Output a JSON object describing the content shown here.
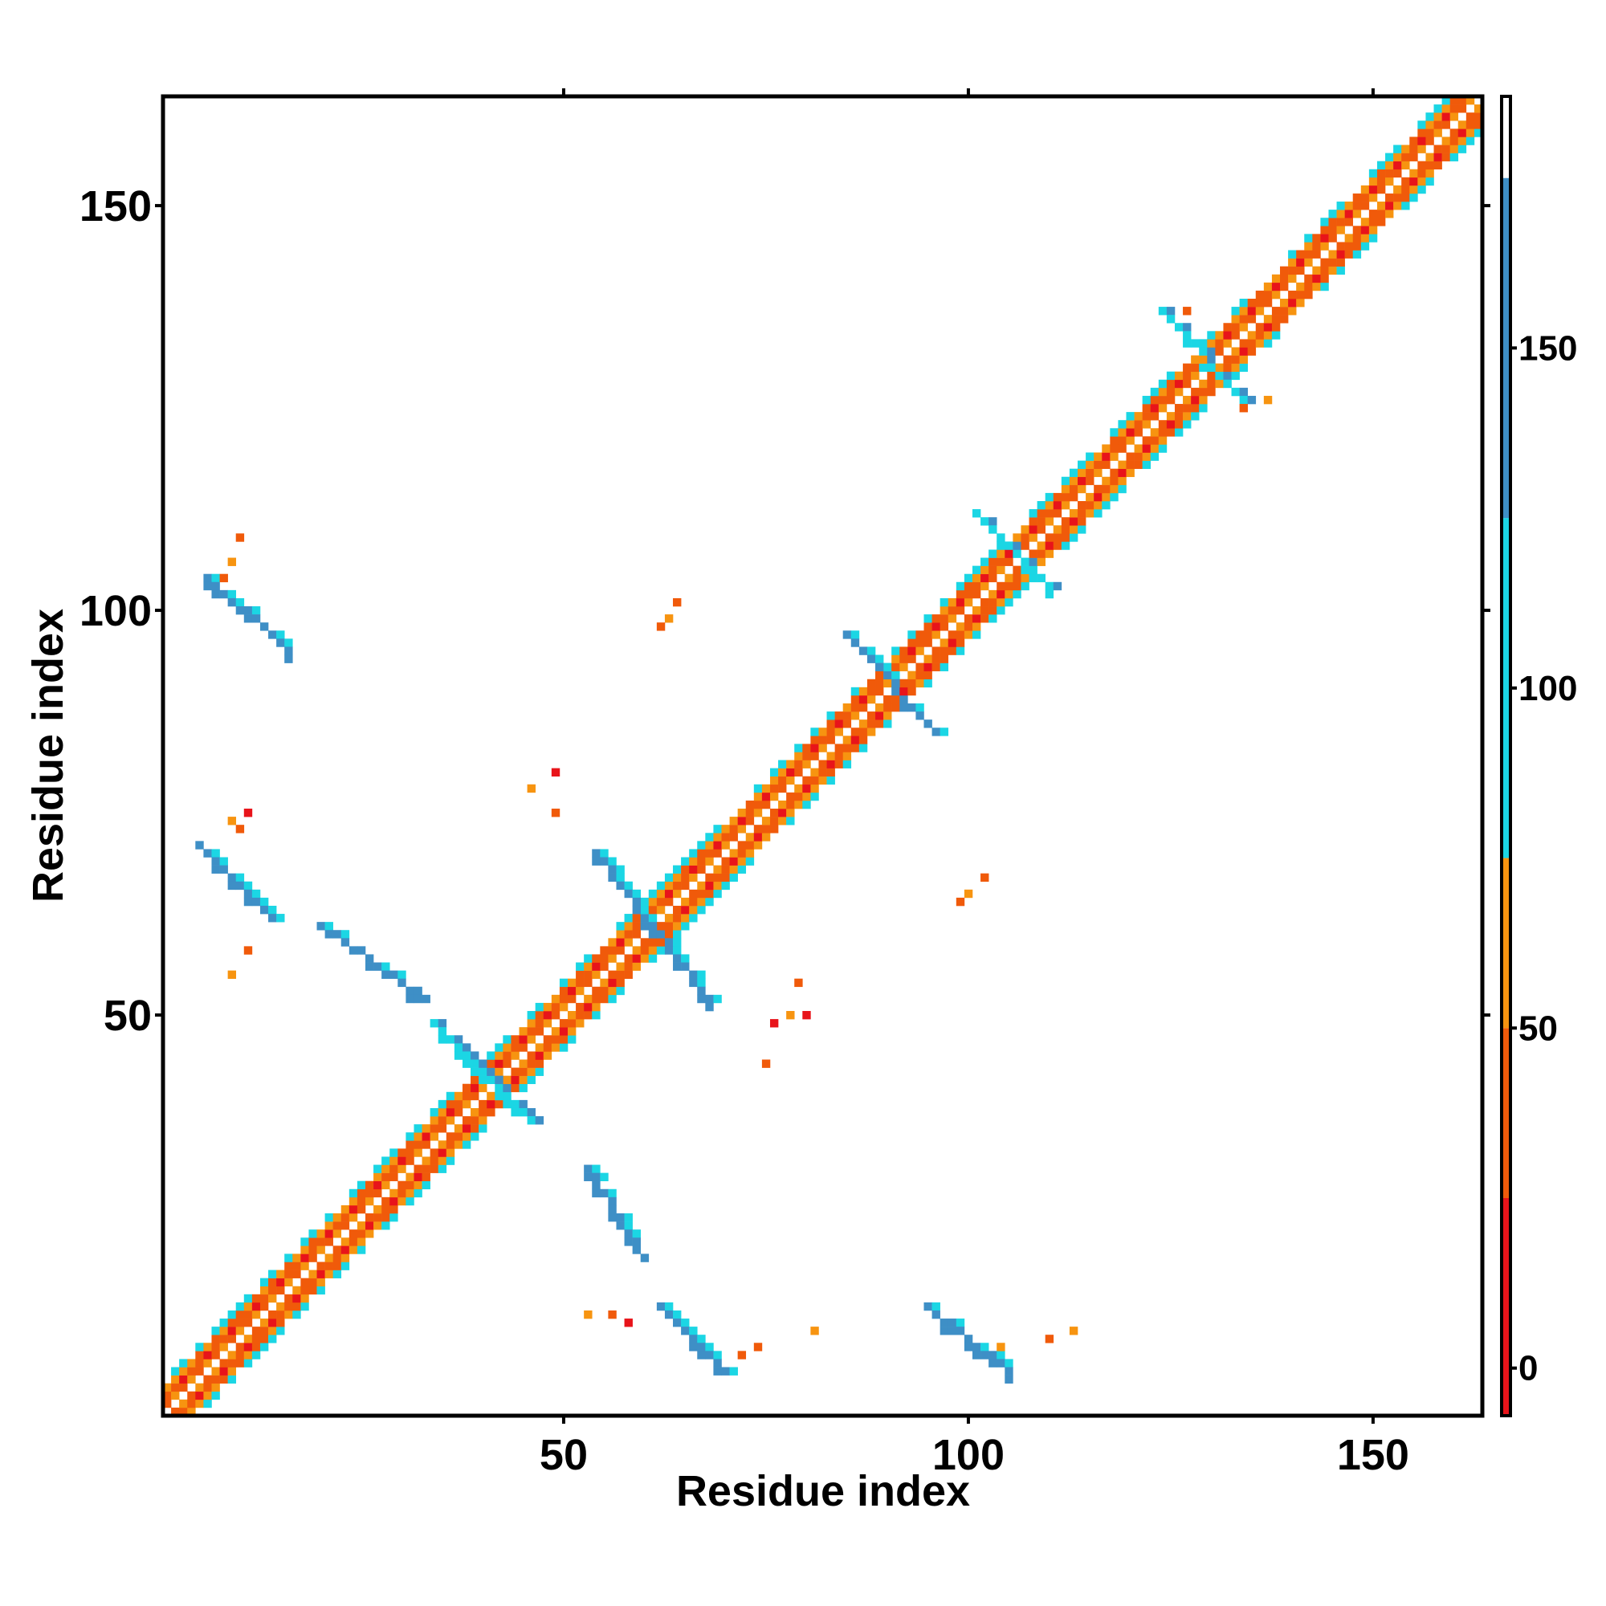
{
  "chart_data": {
    "type": "heatmap",
    "xlabel": "Residue index",
    "ylabel": "Residue index",
    "xlim": [
      1,
      163
    ],
    "ylim": [
      1,
      163
    ],
    "x_ticks": [
      50,
      100,
      150
    ],
    "y_ticks": [
      50,
      100,
      150
    ],
    "colorbar": {
      "ticks": [
        0,
        50,
        100,
        150
      ],
      "range": [
        -7,
        187
      ],
      "bands": [
        {
          "from": -7,
          "to": 25,
          "color": "#E8141A"
        },
        {
          "from": 25,
          "to": 50,
          "color": "#F05A0A"
        },
        {
          "from": 50,
          "to": 75,
          "color": "#F79410"
        },
        {
          "from": 75,
          "to": 125,
          "color": "#1BD6E4"
        },
        {
          "from": 125,
          "to": 175,
          "color": "#3E8FC6"
        },
        {
          "from": 175,
          "to": 187,
          "color": "#FFFFFF"
        }
      ]
    },
    "diagonal_band": {
      "from": 1,
      "to": 163,
      "half_width": 4
    },
    "off_diagonal_features": [
      {
        "name": "antiparallel strand pair 1",
        "from": [
          6,
          104
        ],
        "to": [
          16,
          95
        ],
        "class": 150
      },
      {
        "name": "antiparallel strand pair 2",
        "from": [
          5,
          71
        ],
        "to": [
          14,
          62
        ],
        "class": 150
      },
      {
        "name": "antiparallel strand pair 3",
        "from": [
          54,
          70
        ],
        "to": [
          68,
          52
        ],
        "class": 150
      },
      {
        "name": "antiparallel strand pair 4",
        "from": [
          85,
          97
        ],
        "to": [
          96,
          85
        ],
        "class": 150
      },
      {
        "name": "antiparallel strand pair 5",
        "from": [
          62,
          14
        ],
        "to": [
          70,
          6
        ],
        "class": 150
      },
      {
        "name": "antiparallel strand pair 6",
        "from": [
          95,
          14
        ],
        "to": [
          105,
          6
        ],
        "class": 150
      },
      {
        "name": "loop contacts 1",
        "from": [
          20,
          61
        ],
        "to": [
          33,
          52
        ],
        "class": 150
      },
      {
        "name": "loop contacts 2",
        "from": [
          53,
          31
        ],
        "to": [
          60,
          20
        ],
        "class": 150
      },
      {
        "name": "sheet contacts near 40",
        "from": [
          34,
          49
        ],
        "to": [
          46,
          37
        ],
        "class": 100
      },
      {
        "name": "sheet contacts near 130",
        "from": [
          124,
          137
        ],
        "to": [
          134,
          126
        ],
        "class": 100
      },
      {
        "name": "sheet contacts near 104",
        "from": [
          101,
          112
        ],
        "to": [
          110,
          103
        ],
        "class": 100
      }
    ]
  }
}
